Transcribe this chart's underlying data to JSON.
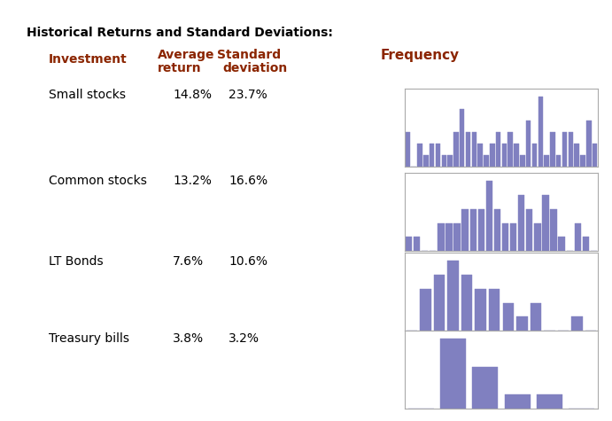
{
  "title": "Historical Returns and Standard Deviations:",
  "title_color": "#000000",
  "header_color": "#8B2500",
  "text_color": "#000000",
  "bar_color": "#8080C0",
  "background_color": "#FFFFFF",
  "rows": [
    {
      "name": "Small stocks",
      "avg": "14.8%",
      "std": "23.7%"
    },
    {
      "name": "Common stocks",
      "avg": "13.2%",
      "std": "16.6%"
    },
    {
      "name": "LT Bonds",
      "avg": "7.6%",
      "std": "10.6%"
    },
    {
      "name": "Treasury bills",
      "avg": "3.8%",
      "std": "3.2%"
    }
  ],
  "freq_label": "Frequency",
  "hist1": [
    3,
    0,
    2,
    1,
    2,
    2,
    1,
    1,
    3,
    5,
    3,
    3,
    2,
    1,
    2,
    3,
    2,
    3,
    2,
    1,
    4,
    2,
    6,
    1,
    3,
    1,
    3,
    3,
    2,
    1,
    4,
    2
  ],
  "hist2": [
    1,
    1,
    0,
    0,
    2,
    2,
    2,
    3,
    3,
    3,
    5,
    3,
    2,
    2,
    4,
    3,
    2,
    4,
    3,
    1,
    0,
    2,
    1,
    0,
    0,
    0,
    0,
    0,
    0,
    0,
    0,
    0
  ],
  "hist3": [
    0,
    0,
    0,
    0,
    0,
    0,
    3,
    4,
    5,
    4,
    3,
    3,
    2,
    1,
    2,
    0,
    0,
    1,
    0,
    0,
    0,
    0,
    0,
    0,
    0,
    0,
    0,
    0,
    0,
    0,
    0,
    0
  ],
  "hist4": [
    0,
    0,
    0,
    0,
    0,
    0,
    0,
    0,
    5,
    3,
    1,
    1,
    0,
    0,
    0,
    0,
    0,
    0,
    0,
    0,
    0,
    0,
    0,
    0,
    0,
    0,
    0,
    0,
    0,
    0,
    0,
    0
  ]
}
